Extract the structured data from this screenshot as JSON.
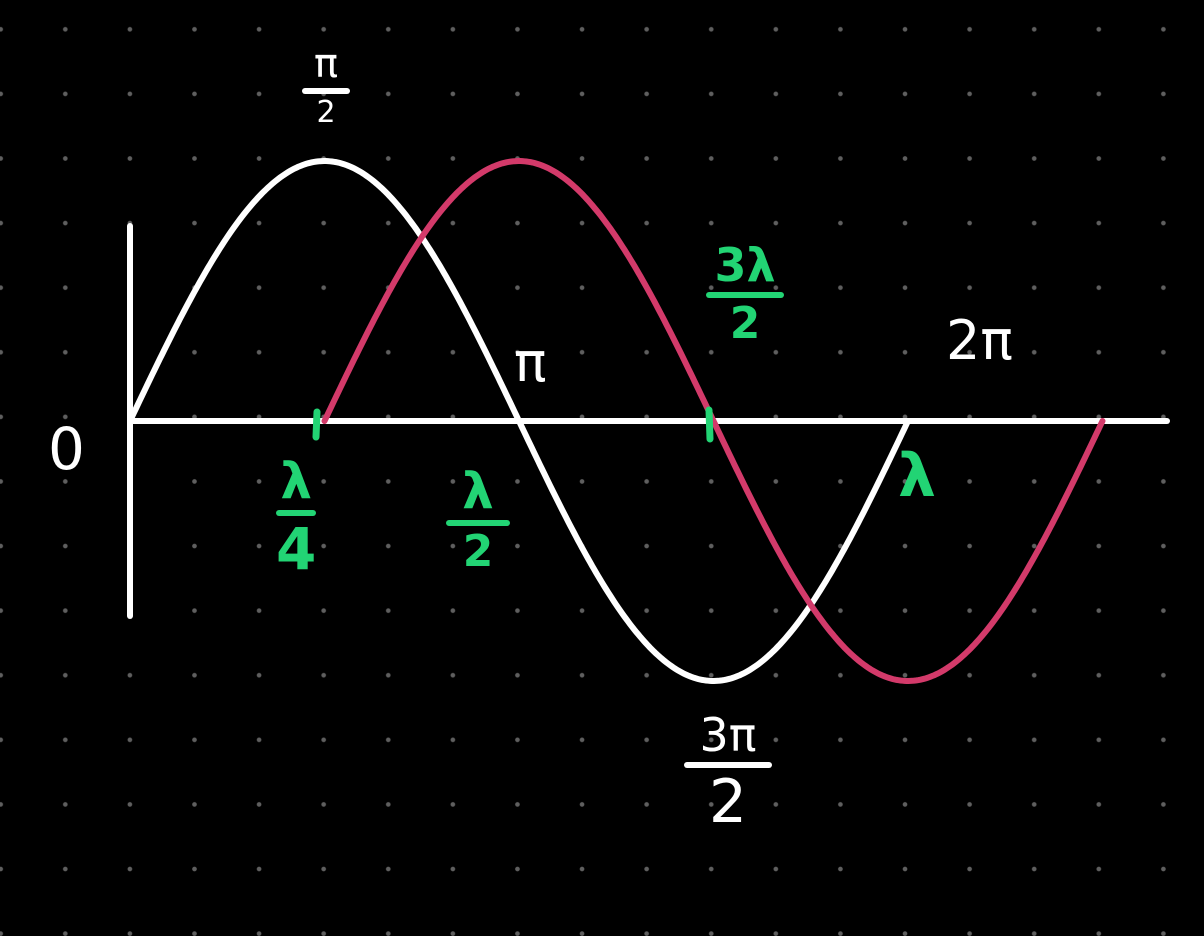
{
  "colors": {
    "background": "#000000",
    "grid_dots": "#5f5f5f",
    "axes": "#ffffff",
    "sine_wave": "#ffffff",
    "shifted_wave": "#d33a6a",
    "wavelength_labels": "#22d474"
  },
  "axis_labels": {
    "origin": "0",
    "half_pi": {
      "num": "π",
      "den": "2"
    },
    "pi": "π",
    "three_half_pi": {
      "num": "3π",
      "den": "2"
    },
    "two_pi": "2π"
  },
  "wavelength_labels": {
    "quarter": {
      "num": "λ",
      "den": "4"
    },
    "half": {
      "num": "λ",
      "den": "2"
    },
    "three_half": {
      "num": "3λ",
      "den": "2"
    },
    "full": "λ"
  }
}
